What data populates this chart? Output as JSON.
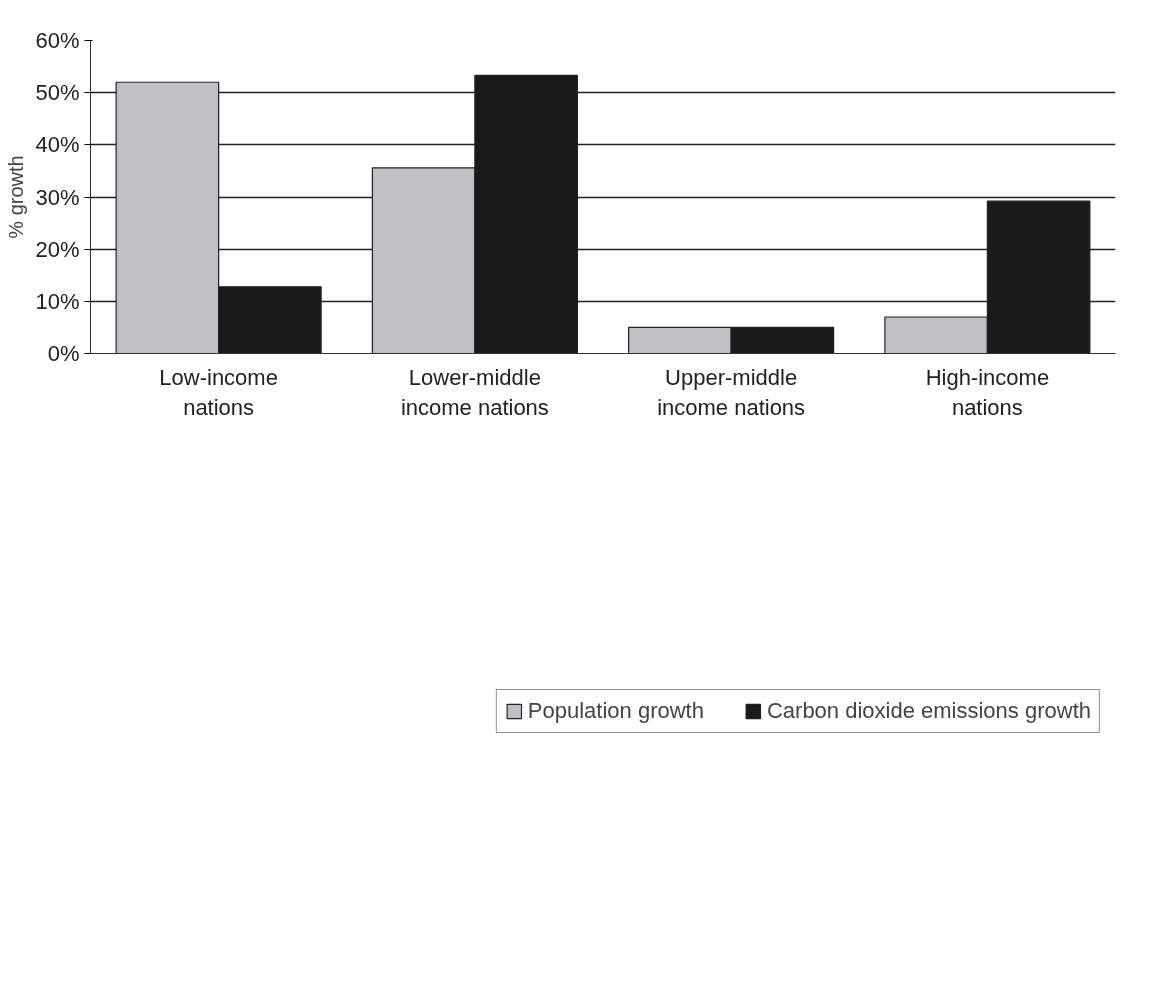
{
  "chart_data": {
    "type": "bar",
    "ylabel": "% growth",
    "categories": [
      "Low-income\nnations",
      "Lower-middle\nincome nations",
      "Upper-middle\nincome nations",
      "High-income\nnations"
    ],
    "series": [
      {
        "name": "Population growth",
        "color": "#c0c0c4",
        "values": [
          52,
          35.6,
          5,
          7
        ]
      },
      {
        "name": "Carbon dioxide emissions growth",
        "color": "#1a1a1a",
        "values": [
          12.8,
          53.3,
          5,
          29.2
        ]
      }
    ],
    "ylim": [
      0,
      60
    ],
    "yticks": [
      {
        "value": 0,
        "label": "0%"
      },
      {
        "value": 10,
        "label": "10%"
      },
      {
        "value": 20,
        "label": "20%"
      },
      {
        "value": 30,
        "label": "30%"
      },
      {
        "value": 40,
        "label": "40%"
      },
      {
        "value": 50,
        "label": "50%"
      },
      {
        "value": 60,
        "label": "60%"
      }
    ],
    "grid": "y",
    "legend": "bottom"
  }
}
